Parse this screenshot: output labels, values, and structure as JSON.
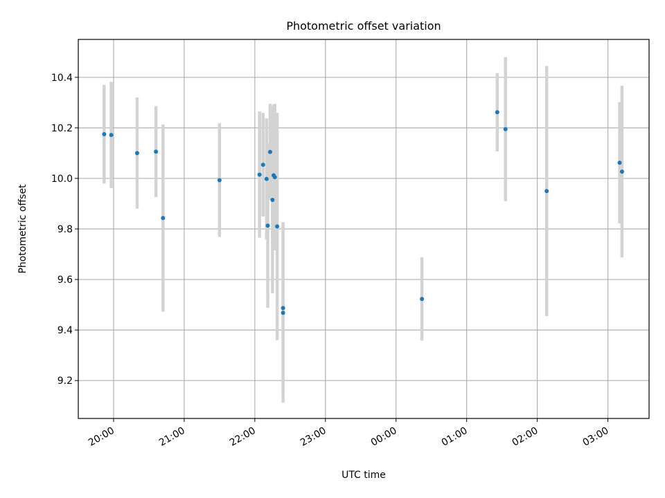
{
  "chart_data": {
    "type": "scatter",
    "title": "Photometric offset variation",
    "xlabel": "UTC time",
    "ylabel": "Photometric offset",
    "x_ticks": [
      "20:00",
      "21:00",
      "22:00",
      "23:00",
      "00:00",
      "01:00",
      "02:00",
      "03:00"
    ],
    "x_tick_hours": [
      20,
      21,
      22,
      23,
      24,
      25,
      26,
      27
    ],
    "xlim": [
      "19:30",
      "03:35"
    ],
    "y_ticks": [
      "9.2",
      "9.4",
      "9.6",
      "9.8",
      "10.0",
      "10.2",
      "10.4"
    ],
    "y_tick_values": [
      9.2,
      9.4,
      9.6,
      9.8,
      10.0,
      10.2,
      10.4
    ],
    "ylim": [
      9.05,
      10.55
    ],
    "grid": true,
    "legend": "none",
    "colors": {
      "points": "#1f77b4",
      "errorbars": "#d3d3d3",
      "grid": "#b0b0b0"
    },
    "points": [
      {
        "time": "19:52",
        "y": 10.175,
        "err": 0.195
      },
      {
        "time": "19:58",
        "y": 10.172,
        "err": 0.21
      },
      {
        "time": "20:20",
        "y": 10.1,
        "err": 0.22
      },
      {
        "time": "20:36",
        "y": 10.106,
        "err": 0.18
      },
      {
        "time": "20:42",
        "y": 9.843,
        "err": 0.37
      },
      {
        "time": "21:30",
        "y": 9.993,
        "err": 0.225
      },
      {
        "time": "22:04",
        "y": 10.015,
        "err": 0.25
      },
      {
        "time": "22:07",
        "y": 10.054,
        "err": 0.205
      },
      {
        "time": "22:10",
        "y": 9.998,
        "err": 0.24
      },
      {
        "time": "22:11",
        "y": 9.813,
        "err": 0.325
      },
      {
        "time": "22:13",
        "y": 10.105,
        "err": 0.19
      },
      {
        "time": "22:15",
        "y": 9.915,
        "err": 0.37
      },
      {
        "time": "22:16",
        "y": 10.012,
        "err": 0.28
      },
      {
        "time": "22:17",
        "y": 10.005,
        "err": 0.29
      },
      {
        "time": "22:19",
        "y": 9.81,
        "err": 0.45
      },
      {
        "time": "22:24",
        "y": 9.468,
        "err": 0.355
      },
      {
        "time": "22:24",
        "y": 9.487,
        "err": 0.34
      },
      {
        "time": "00:22",
        "y": 9.523,
        "err": 0.165
      },
      {
        "time": "01:26",
        "y": 10.262,
        "err": 0.155
      },
      {
        "time": "01:33",
        "y": 10.195,
        "err": 0.285
      },
      {
        "time": "02:08",
        "y": 9.95,
        "err": 0.495
      },
      {
        "time": "03:10",
        "y": 10.062,
        "err": 0.24
      },
      {
        "time": "03:12",
        "y": 10.027,
        "err": 0.34
      }
    ]
  }
}
